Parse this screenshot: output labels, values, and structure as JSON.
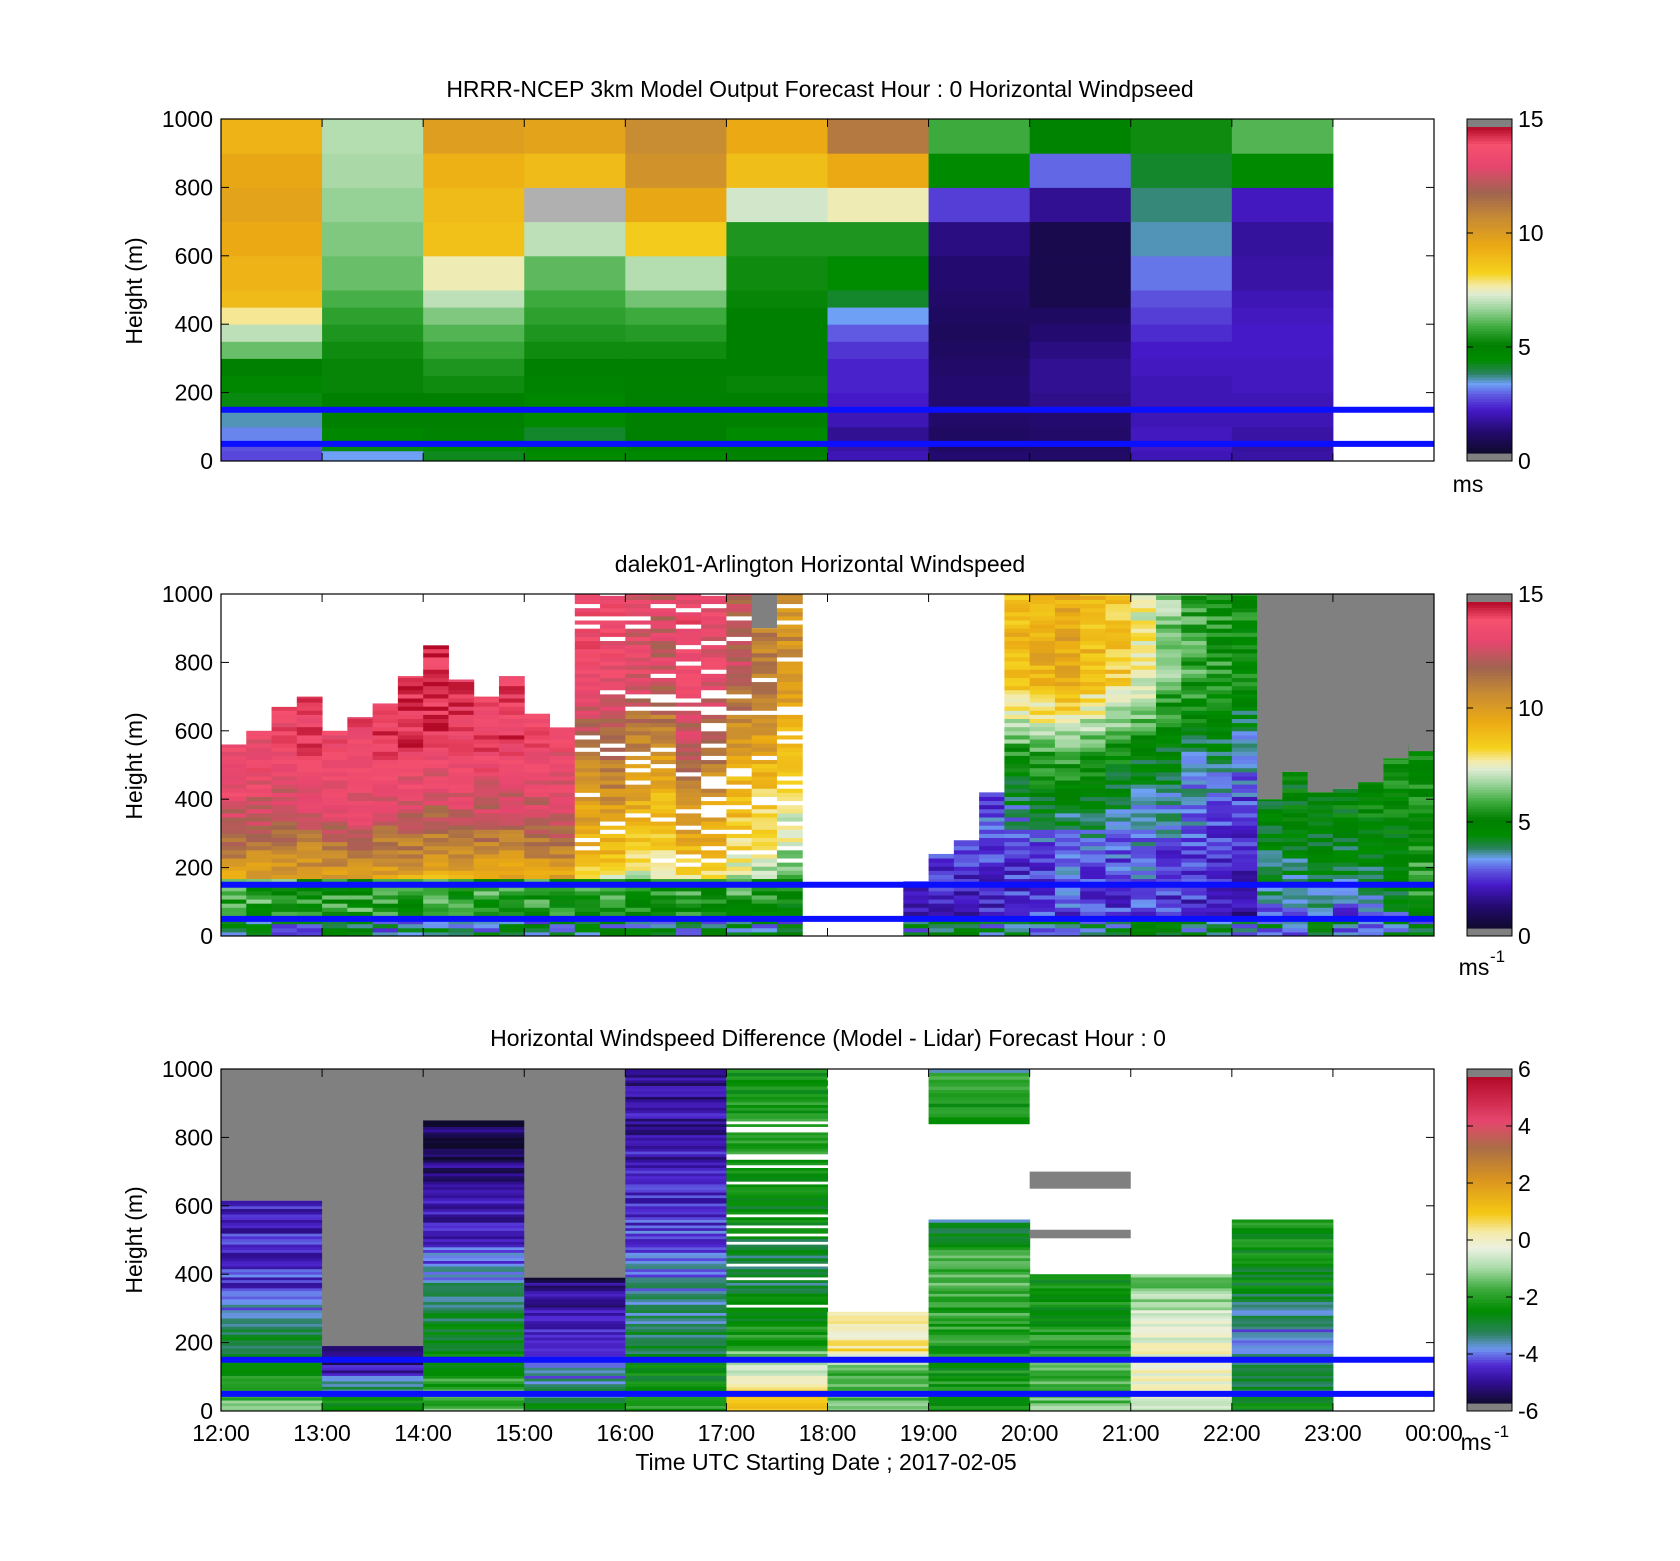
{
  "chart_data": [
    {
      "type": "heatmap",
      "title": "HRRR-NCEP 3km Model Output   Forecast Hour : 0 Horizontal Windpseed",
      "ylabel": "Height (m)",
      "xlabel": "",
      "ylim": [
        0,
        1000
      ],
      "yticks": [
        "0",
        "200",
        "400",
        "600",
        "800",
        "1000"
      ],
      "colorbar": {
        "ticks": [
          "0",
          "5",
          "10",
          "15"
        ],
        "range": [
          0,
          15
        ],
        "unit": "ms",
        "unit_sup": ""
      },
      "reference_lines_m": [
        50,
        150
      ],
      "hours": [
        12,
        13,
        14,
        15,
        16,
        17,
        18,
        19,
        20,
        21,
        22
      ],
      "levels_m": [
        0,
        30,
        60,
        100,
        150,
        200,
        250,
        300,
        350,
        400,
        450,
        500,
        600,
        700,
        800,
        900,
        1000
      ],
      "values": [
        [
          2.5,
          2.6,
          3.0,
          3.4,
          4.2,
          4.6,
          5.0,
          6.2,
          7.0,
          7.8,
          9.0,
          9.2,
          9.5,
          9.8,
          9.6,
          9.2
        ],
        [
          3.2,
          4.2,
          4.6,
          5.0,
          5.0,
          5.1,
          5.1,
          5.2,
          5.4,
          5.6,
          5.9,
          6.2,
          6.4,
          6.6,
          6.8,
          6.9
        ],
        [
          4.1,
          4.5,
          4.8,
          5.0,
          5.0,
          5.2,
          5.4,
          5.7,
          6.0,
          6.4,
          7.0,
          7.6,
          8.8,
          9.0,
          9.3,
          10.0
        ],
        [
          4.4,
          4.7,
          4.0,
          4.4,
          4.6,
          4.8,
          5.0,
          5.2,
          5.4,
          5.6,
          5.8,
          6.1,
          7.0,
          "g",
          9.0,
          9.8
        ],
        [
          4.5,
          4.9,
          5.0,
          5.0,
          5.0,
          4.9,
          5.0,
          5.2,
          5.5,
          5.8,
          6.3,
          6.9,
          8.5,
          9.6,
          10.5,
          10.8
        ],
        [
          4.8,
          5.0,
          4.4,
          4.9,
          5.0,
          5.1,
          5.0,
          5.0,
          5.0,
          5.0,
          5.1,
          5.2,
          5.4,
          7.2,
          8.9,
          9.5
        ],
        [
          1.8,
          1.6,
          1.4,
          1.8,
          2.0,
          2.1,
          2.1,
          2.3,
          2.7,
          3.2,
          4.0,
          4.3,
          5.4,
          7.6,
          9.5,
          11.4
        ],
        [
          1.0,
          0.8,
          0.8,
          0.9,
          1.0,
          1.0,
          0.9,
          0.8,
          0.7,
          0.8,
          0.9,
          1.0,
          1.2,
          2.4,
          4.4,
          5.8
        ],
        [
          0.9,
          0.8,
          0.9,
          1.0,
          1.3,
          1.4,
          1.4,
          1.2,
          1.0,
          0.8,
          0.5,
          0.5,
          0.5,
          1.4,
          2.8,
          4.8
        ],
        [
          1.8,
          1.9,
          1.9,
          1.8,
          1.8,
          1.8,
          1.9,
          2.0,
          2.2,
          2.4,
          2.6,
          2.9,
          3.4,
          3.6,
          4.0,
          5.2
        ],
        [
          1.6,
          1.5,
          1.6,
          1.8,
          1.8,
          1.9,
          1.9,
          2.0,
          2.0,
          1.9,
          1.8,
          1.6,
          1.5,
          1.9,
          4.4,
          6.0
        ]
      ]
    },
    {
      "type": "heatmap",
      "title": "dalek01-Arlington  Horizontal Windspeed",
      "ylabel": "Height (m)",
      "xlabel": "",
      "ylim": [
        0,
        1000
      ],
      "yticks": [
        "0",
        "200",
        "400",
        "600",
        "800",
        "1000"
      ],
      "colorbar": {
        "ticks": [
          "0",
          "5",
          "10",
          "15"
        ],
        "range": [
          0,
          15
        ],
        "unit": "ms",
        "unit_sup": "-1"
      },
      "reference_lines_m": [
        50,
        150
      ],
      "hours_start": 12,
      "columns_per_hour": 4,
      "top_of_data_m": [
        560,
        600,
        670,
        700,
        600,
        640,
        680,
        760,
        850,
        750,
        700,
        760,
        650,
        610,
        1000,
        1000,
        1000,
        1000,
        1000,
        1000,
        1000,
        900,
        1000,
        0,
        0,
        0,
        0,
        160,
        240,
        280,
        420,
        1000,
        1000,
        1000,
        1000,
        1000,
        1000,
        1000,
        1000,
        1000,
        1000,
        400,
        480,
        420,
        430,
        450,
        520,
        550,
        560,
        580,
        560,
        560,
        560,
        560,
        540,
        0
      ],
      "missing_above_m": [
        560,
        600,
        670,
        700,
        600,
        640,
        680,
        760,
        850,
        750,
        700,
        760,
        650,
        610,
        1000,
        1000,
        1000,
        1000,
        1000,
        1000,
        1000,
        1000,
        1000,
        0,
        0,
        0,
        0,
        0,
        0,
        0,
        0,
        1000,
        1000,
        1000,
        1000,
        1000,
        1000,
        1000,
        1000,
        1000,
        1000,
        1000,
        1000,
        1000,
        1000,
        1000,
        1000,
        1000,
        1000,
        1000,
        1000,
        1000,
        1000,
        1000,
        1000,
        0
      ],
      "column_profile": [
        [
          4.5,
          9.0,
          12.0,
          13.5
        ],
        [
          4.6,
          9.5,
          12.2,
          13.6
        ],
        [
          4.8,
          9.8,
          12.4,
          13.8
        ],
        [
          5.0,
          10.0,
          12.6,
          14.0
        ],
        [
          4.7,
          9.6,
          12.4,
          13.8
        ],
        [
          4.8,
          10.2,
          12.8,
          14.0
        ],
        [
          4.6,
          9.8,
          12.6,
          14.2
        ],
        [
          4.9,
          10.2,
          13.0,
          14.4
        ],
        [
          5.0,
          10.4,
          13.2,
          14.6
        ],
        [
          4.8,
          10.0,
          12.8,
          14.2
        ],
        [
          4.7,
          9.8,
          12.6,
          14.0
        ],
        [
          4.9,
          10.0,
          12.8,
          14.2
        ],
        [
          4.8,
          9.6,
          12.4,
          13.8
        ],
        [
          4.6,
          9.4,
          12.2,
          13.6
        ],
        [
          4.5,
          9.0,
          11.0,
          13.8
        ],
        [
          4.4,
          9.2,
          11.4,
          13.6
        ],
        [
          4.3,
          8.6,
          10.2,
          13.2
        ],
        [
          4.2,
          8.4,
          9.8,
          12.8
        ],
        [
          4.6,
          9.4,
          11.8,
          13.8
        ],
        [
          4.5,
          9.0,
          11.2,
          13.4
        ],
        [
          4.4,
          8.2,
          9.6,
          12.4
        ],
        [
          4.1,
          7.4,
          8.8,
          11.2
        ],
        [
          3.5,
          7.0,
          8.6,
          10.6
        ],
        [
          2.0,
          2.0,
          2.0,
          2.0
        ],
        [
          2.0,
          2.0,
          2.0,
          2.0
        ],
        [
          2.0,
          2.0,
          2.0,
          2.0
        ],
        [
          2.0,
          2.0,
          2.0,
          2.0
        ],
        [
          1.5,
          1.8,
          1.9,
          2.0
        ],
        [
          1.6,
          1.9,
          2.0,
          2.2
        ],
        [
          1.7,
          2.0,
          2.2,
          2.4
        ],
        [
          1.8,
          2.1,
          2.3,
          2.6
        ],
        [
          2.0,
          2.4,
          5.0,
          9.0
        ],
        [
          2.2,
          2.6,
          5.4,
          9.4
        ],
        [
          2.4,
          2.9,
          5.6,
          9.6
        ],
        [
          2.2,
          2.8,
          5.2,
          9.0
        ],
        [
          2.3,
          2.6,
          4.8,
          8.6
        ],
        [
          2.4,
          2.8,
          4.4,
          7.6
        ],
        [
          2.1,
          2.6,
          4.0,
          6.4
        ],
        [
          2.0,
          2.4,
          3.6,
          5.8
        ],
        [
          1.8,
          2.2,
          3.4,
          5.4
        ],
        [
          1.6,
          2.0,
          3.0,
          5.0
        ],
        [
          2.6,
          3.2,
          3.8,
          4.2
        ],
        [
          2.4,
          3.6,
          4.2,
          4.6
        ],
        [
          2.2,
          3.4,
          4.0,
          4.4
        ],
        [
          2.0,
          3.2,
          4.2,
          4.6
        ],
        [
          2.8,
          3.8,
          4.4,
          4.8
        ],
        [
          3.0,
          4.2,
          4.6,
          5.0
        ],
        [
          3.4,
          4.4,
          4.8,
          5.0
        ],
        [
          4.0,
          4.6,
          5.0,
          5.1
        ],
        [
          4.6,
          5.0,
          5.2,
          5.3
        ],
        [
          5.4,
          5.2,
          5.0,
          5.0
        ],
        [
          5.8,
          5.4,
          5.0,
          4.9
        ],
        [
          6.0,
          5.6,
          5.0,
          4.9
        ],
        [
          6.2,
          5.8,
          5.0,
          4.8
        ],
        [
          6.4,
          6.0,
          5.2,
          5.0
        ],
        [
          5.0,
          5.0,
          5.0,
          5.0
        ]
      ]
    },
    {
      "type": "heatmap",
      "title": "Horizontal Windspeed Difference (Model - Lidar) Forecast Hour : 0",
      "ylabel": "Height (m)",
      "xlabel": "Time UTC  Starting Date ; 2017-02-05",
      "ylim": [
        0,
        1000
      ],
      "yticks": [
        "0",
        "200",
        "400",
        "600",
        "800",
        "1000"
      ],
      "xticks": [
        "12:00",
        "13:00",
        "14:00",
        "15:00",
        "16:00",
        "17:00",
        "18:00",
        "19:00",
        "20:00",
        "21:00",
        "22:00",
        "23:00",
        "00:00"
      ],
      "colorbar": {
        "ticks": [
          "-6",
          "-4",
          "-2",
          "0",
          "2",
          "4",
          "6"
        ],
        "range": [
          -6,
          6
        ],
        "unit": "ms",
        "unit_sup": "-1"
      },
      "reference_lines_m": [
        50,
        150
      ],
      "columns": [
        {
          "hour": 12,
          "missing_above_m": 615,
          "profile": [
            -1.2,
            -2.6,
            -3.6,
            -4.6,
            -4.8,
            -5.0
          ]
        },
        {
          "hour": 13,
          "missing_above_m": 190,
          "profile": [
            -2.4,
            -3.0,
            -3.8,
            -5.0,
            -5.2,
            -5.4
          ]
        },
        {
          "hour": 14,
          "missing_above_m": 850,
          "profile": [
            -1.6,
            -2.6,
            -3.4,
            -4.8,
            -5.4,
            -5.8
          ]
        },
        {
          "hour": 15,
          "missing_above_m": 390,
          "profile": [
            -2.8,
            -3.8,
            -4.4,
            -4.8,
            -5.0,
            -5.6
          ]
        },
        {
          "hour": 16,
          "missing_above_m": 1000,
          "profile": [
            -2.2,
            -3.2,
            -4.0,
            -4.8,
            -5.0,
            -5.4
          ]
        },
        {
          "hour": 17,
          "missing_above_m": 1000,
          "profile": [
            1.4,
            -2.2,
            -3.4,
            -2.6,
            -2.2,
            -2.4
          ]
        },
        {
          "hour": 18,
          "missing_above_m": 290,
          "profile": [
            -1.2,
            -1.6,
            -2.0,
            0.8,
            0,
            0
          ]
        },
        {
          "hour": 19,
          "missing_above_m": 560,
          "profile": [
            -2.2,
            -2.4,
            -2.2,
            -1.8,
            -1.6,
            -3.6
          ]
        },
        {
          "hour": 20,
          "missing_above_m": 400,
          "profile": [
            -1.4,
            -1.8,
            -2.0,
            -2.2,
            -2.4,
            -2.4
          ]
        },
        {
          "hour": 21,
          "missing_above_m": 400,
          "profile": [
            -0.4,
            -0.2,
            0.0,
            -0.4,
            -1.0,
            -1.6
          ]
        },
        {
          "hour": 22,
          "missing_above_m": 560,
          "profile": [
            -2.6,
            -3.2,
            -4.0,
            -3.0,
            -2.6,
            -2.4
          ]
        }
      ]
    }
  ]
}
